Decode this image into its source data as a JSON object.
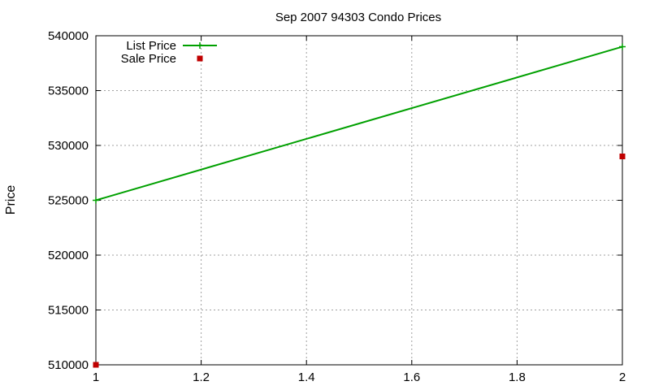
{
  "chart_data": {
    "type": "line",
    "title": "Sep 2007 94303 Condo Prices",
    "xlabel": "",
    "ylabel": "Price",
    "xlim": [
      1,
      2
    ],
    "ylim": [
      510000,
      540000
    ],
    "x_ticks": [
      "1",
      "1.2",
      "1.4",
      "1.6",
      "1.8",
      "2"
    ],
    "y_ticks": [
      "510000",
      "515000",
      "520000",
      "525000",
      "530000",
      "535000",
      "540000"
    ],
    "grid": true,
    "legend_position": "top-left",
    "series": [
      {
        "name": "List Price",
        "style": "line-with-plus-points",
        "color": "#00a000",
        "points": [
          [
            1,
            525000
          ],
          [
            2,
            539000
          ]
        ]
      },
      {
        "name": "Sale Price",
        "style": "square-points",
        "color": "#c00000",
        "points": [
          [
            1,
            510000
          ],
          [
            2,
            529000
          ]
        ]
      }
    ]
  }
}
